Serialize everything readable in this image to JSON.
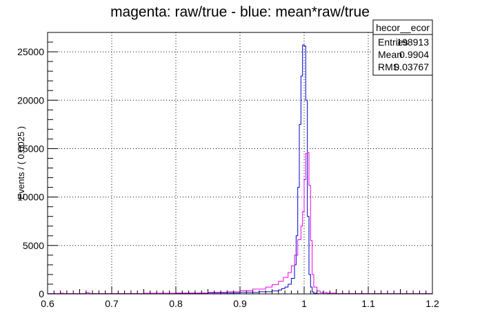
{
  "chart_data": {
    "type": "histogram",
    "title": "magenta: raw/true - blue: mean*raw/true",
    "xlabel": "",
    "ylabel": "Events / ( 0.0025 )",
    "xlim": [
      0.6,
      1.2
    ],
    "ylim": [
      0,
      27000
    ],
    "x_ticks": [
      0.6,
      0.7,
      0.8,
      0.9,
      1.0,
      1.1,
      1.2
    ],
    "x_tick_labels": [
      "0.6",
      "0.7",
      "0.8",
      "0.9",
      "1",
      "1.1",
      "1.2"
    ],
    "y_ticks": [
      0,
      5000,
      10000,
      15000,
      20000,
      25000
    ],
    "y_tick_labels": [
      "0",
      "5000",
      "10000",
      "15000",
      "20000",
      "25000"
    ],
    "grid": true,
    "series": [
      {
        "color": "#0000cc",
        "bins": [
          [
            0.6,
            0.62,
            30
          ],
          [
            0.62,
            0.625,
            60
          ],
          [
            0.625,
            0.66,
            30
          ],
          [
            0.66,
            0.665,
            120
          ],
          [
            0.665,
            0.75,
            30
          ],
          [
            0.75,
            0.85,
            50
          ],
          [
            0.85,
            0.9,
            100
          ],
          [
            0.9,
            0.93,
            150
          ],
          [
            0.93,
            0.95,
            220
          ],
          [
            0.95,
            0.96,
            300
          ],
          [
            0.96,
            0.965,
            400
          ],
          [
            0.965,
            0.97,
            550
          ],
          [
            0.97,
            0.975,
            700
          ],
          [
            0.975,
            0.98,
            1000
          ],
          [
            0.98,
            0.985,
            1600
          ],
          [
            0.985,
            0.9875,
            3000
          ],
          [
            0.9875,
            0.99,
            6000
          ],
          [
            0.99,
            0.9925,
            11000
          ],
          [
            0.9925,
            0.995,
            17500
          ],
          [
            0.995,
            0.9975,
            22500
          ],
          [
            0.9975,
            1.0,
            25700
          ],
          [
            1.0,
            1.0025,
            25600
          ],
          [
            1.0025,
            1.005,
            20000
          ],
          [
            1.005,
            1.0075,
            8000
          ],
          [
            1.0075,
            1.01,
            2000
          ],
          [
            1.01,
            1.0125,
            700
          ],
          [
            1.0125,
            1.015,
            200
          ],
          [
            1.015,
            1.02,
            60
          ],
          [
            1.02,
            1.2,
            15
          ]
        ]
      },
      {
        "color": "#ee00ee",
        "bins": [
          [
            0.6,
            0.62,
            30
          ],
          [
            0.62,
            0.625,
            70
          ],
          [
            0.625,
            0.66,
            35
          ],
          [
            0.66,
            0.665,
            110
          ],
          [
            0.665,
            0.75,
            40
          ],
          [
            0.75,
            0.8,
            60
          ],
          [
            0.8,
            0.85,
            90
          ],
          [
            0.85,
            0.88,
            150
          ],
          [
            0.88,
            0.9,
            220
          ],
          [
            0.9,
            0.92,
            320
          ],
          [
            0.92,
            0.94,
            500
          ],
          [
            0.94,
            0.95,
            700
          ],
          [
            0.95,
            0.96,
            950
          ],
          [
            0.96,
            0.9675,
            1300
          ],
          [
            0.9675,
            0.975,
            1700
          ],
          [
            0.975,
            0.98,
            2200
          ],
          [
            0.98,
            0.985,
            2900
          ],
          [
            0.985,
            0.99,
            4000
          ],
          [
            0.99,
            0.995,
            5600
          ],
          [
            0.995,
            0.9975,
            7000
          ],
          [
            0.9975,
            1.0,
            8500
          ],
          [
            1.0,
            1.0025,
            11800
          ],
          [
            1.0025,
            1.005,
            14500
          ],
          [
            1.005,
            1.0075,
            14600
          ],
          [
            1.0075,
            1.01,
            11200
          ],
          [
            1.01,
            1.0125,
            5500
          ],
          [
            1.0125,
            1.015,
            2000
          ],
          [
            1.015,
            1.02,
            700
          ],
          [
            1.02,
            1.025,
            300
          ],
          [
            1.025,
            1.035,
            150
          ],
          [
            1.035,
            1.05,
            80
          ],
          [
            1.05,
            1.1,
            40
          ],
          [
            1.1,
            1.2,
            30
          ]
        ]
      }
    ],
    "legend": "top-right"
  },
  "stats_box": {
    "title": "hecor__ecor",
    "rows": [
      {
        "label": "Entries",
        "value": "198913"
      },
      {
        "label": "Mean",
        "value": "0.9904"
      },
      {
        "label": "RMS",
        "value": "0.03767"
      }
    ]
  }
}
